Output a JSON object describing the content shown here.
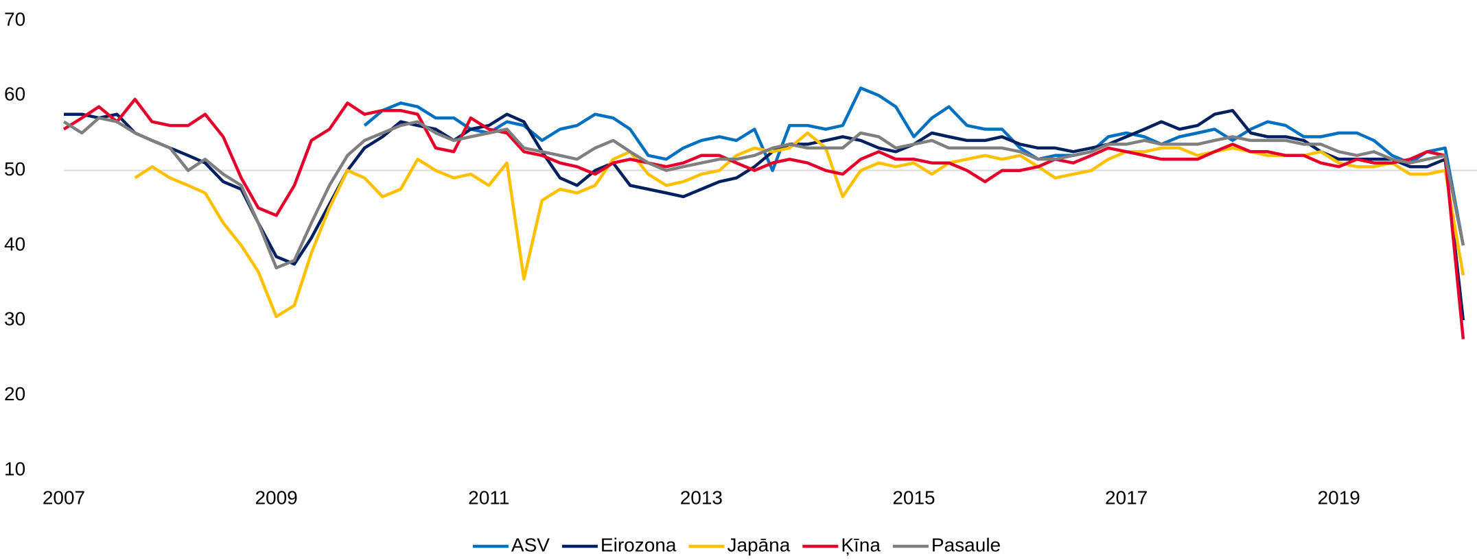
{
  "chart_data": {
    "type": "line",
    "x": [
      2007,
      2007.17,
      2007.33,
      2007.5,
      2007.67,
      2007.83,
      2008,
      2008.17,
      2008.33,
      2008.5,
      2008.67,
      2008.83,
      2009,
      2009.17,
      2009.33,
      2009.5,
      2009.67,
      2009.83,
      2010,
      2010.17,
      2010.33,
      2010.5,
      2010.67,
      2010.83,
      2011,
      2011.17,
      2011.33,
      2011.5,
      2011.67,
      2011.83,
      2012,
      2012.17,
      2012.33,
      2012.5,
      2012.67,
      2012.83,
      2013,
      2013.17,
      2013.33,
      2013.5,
      2013.67,
      2013.83,
      2014,
      2014.17,
      2014.33,
      2014.5,
      2014.67,
      2014.83,
      2015,
      2015.17,
      2015.33,
      2015.5,
      2015.67,
      2015.83,
      2016,
      2016.17,
      2016.33,
      2016.5,
      2016.67,
      2016.83,
      2017,
      2017.17,
      2017.33,
      2017.5,
      2017.67,
      2017.83,
      2018,
      2018.17,
      2018.33,
      2018.5,
      2018.67,
      2018.83,
      2019,
      2019.17,
      2019.33,
      2019.5,
      2019.67,
      2019.83,
      2020,
      2020.17
    ],
    "series": [
      {
        "name": "ASV",
        "color": "#0070c0",
        "values": [
          null,
          null,
          null,
          null,
          null,
          null,
          null,
          null,
          null,
          null,
          null,
          null,
          null,
          null,
          null,
          null,
          null,
          56,
          58,
          59,
          58.5,
          57,
          57,
          55.5,
          55,
          56.5,
          56,
          54,
          55.5,
          56,
          57.5,
          57,
          55.5,
          52,
          51.5,
          53,
          54,
          54.5,
          54,
          55.5,
          50,
          56,
          56,
          55.5,
          56,
          61,
          60,
          58.5,
          54.5,
          57,
          58.5,
          56,
          55.5,
          55.5,
          53,
          51.5,
          52,
          52,
          52.5,
          54.5,
          55,
          54.5,
          53.5,
          54.5,
          55,
          55.5,
          54,
          55.5,
          56.5,
          56,
          54.5,
          54.5,
          55,
          55,
          54,
          52,
          51,
          52.5,
          53,
          40
        ]
      },
      {
        "name": "Eirozona",
        "color": "#002060",
        "values": [
          57.5,
          57.5,
          57,
          57.5,
          55,
          54,
          53,
          52,
          51,
          48.5,
          47.5,
          43,
          38.5,
          37.5,
          41,
          45.5,
          50,
          53,
          54.5,
          56.5,
          56,
          55.5,
          54,
          55.5,
          56,
          57.5,
          56.5,
          52.5,
          49,
          48,
          50,
          51,
          48,
          47.5,
          47,
          46.5,
          47.5,
          48.5,
          49,
          50.5,
          52.5,
          53.5,
          53.5,
          54,
          54.5,
          54,
          53,
          52.5,
          53.5,
          55,
          54.5,
          54,
          54,
          54.5,
          53.5,
          53,
          53,
          52.5,
          53,
          53.5,
          54.5,
          55.5,
          56.5,
          55.5,
          56,
          57.5,
          58,
          55,
          54.5,
          54.5,
          54,
          52.5,
          51.5,
          51.5,
          51.5,
          51.5,
          50.5,
          50.5,
          51.5,
          30
        ]
      },
      {
        "name": "Japāna",
        "color": "#ffc000",
        "values": [
          null,
          null,
          null,
          null,
          49,
          50.5,
          49,
          48,
          47,
          43,
          40,
          36.5,
          30.5,
          32,
          39,
          45,
          50,
          49,
          46.5,
          47.5,
          51.5,
          50,
          49,
          49.5,
          48,
          51,
          35.5,
          46,
          47.5,
          47,
          48,
          51.5,
          52.5,
          49.5,
          48,
          48.5,
          49.5,
          50,
          52,
          53,
          52.5,
          53,
          55,
          53,
          46.5,
          50,
          51,
          50.5,
          51,
          49.5,
          51,
          51.5,
          52,
          51.5,
          52,
          50.5,
          49,
          49.5,
          50,
          51.5,
          52.5,
          52.5,
          53,
          53,
          52,
          52.5,
          53,
          52.5,
          52,
          52,
          52,
          52.5,
          51,
          50.5,
          50.5,
          51,
          49.5,
          49.5,
          50,
          36
        ]
      },
      {
        "name": "Ķīna",
        "color": "#e4002b",
        "values": [
          55.5,
          57,
          58.5,
          56.5,
          59.5,
          56.5,
          56,
          56,
          57.5,
          54.5,
          49,
          45,
          44,
          48,
          54,
          55.5,
          59,
          57.5,
          58,
          58,
          57.5,
          53,
          52.5,
          57,
          55.5,
          55,
          52.5,
          52,
          51,
          50.5,
          49.5,
          51,
          51.5,
          51,
          50.5,
          51,
          52,
          52,
          51,
          50,
          51,
          51.5,
          51,
          50,
          49.5,
          51.5,
          52.5,
          51.5,
          51.5,
          51,
          51,
          50,
          48.5,
          50,
          50,
          50.5,
          51.5,
          51,
          52,
          53,
          52.5,
          52,
          51.5,
          51.5,
          51.5,
          52.5,
          53.5,
          52.5,
          52.5,
          52,
          52,
          51,
          50.5,
          51.5,
          51,
          51,
          51.5,
          52.5,
          52,
          27.5
        ]
      },
      {
        "name": "Pasaule",
        "color": "#7f7f7f",
        "values": [
          56.5,
          55,
          57,
          56.5,
          55,
          54,
          53,
          50,
          51.5,
          49.5,
          48,
          43,
          37,
          38,
          43,
          48,
          52,
          54,
          55,
          56,
          56.5,
          55,
          54,
          54.5,
          55,
          55.5,
          53,
          52.5,
          52,
          51.5,
          53,
          54,
          52.5,
          51,
          50,
          50.5,
          51,
          51.5,
          51.5,
          52,
          53,
          53.5,
          53,
          53,
          53,
          55,
          54.5,
          53,
          53.5,
          54,
          53,
          53,
          53,
          53,
          52.5,
          51.5,
          51.5,
          52,
          52.5,
          53.5,
          53.5,
          54,
          53.5,
          53.5,
          53.5,
          54,
          54.5,
          54,
          54,
          54,
          53.5,
          53.5,
          52.5,
          52,
          52.5,
          51.5,
          51,
          51.5,
          52,
          40
        ]
      }
    ],
    "xlim": [
      2007,
      2020.3
    ],
    "xticks": [
      2007,
      2009,
      2011,
      2013,
      2015,
      2017,
      2019
    ],
    "ylim": [
      10,
      70
    ],
    "yticks": [
      10,
      20,
      30,
      40,
      50,
      60,
      70
    ],
    "reference_line": 50,
    "legend": "bottom"
  }
}
